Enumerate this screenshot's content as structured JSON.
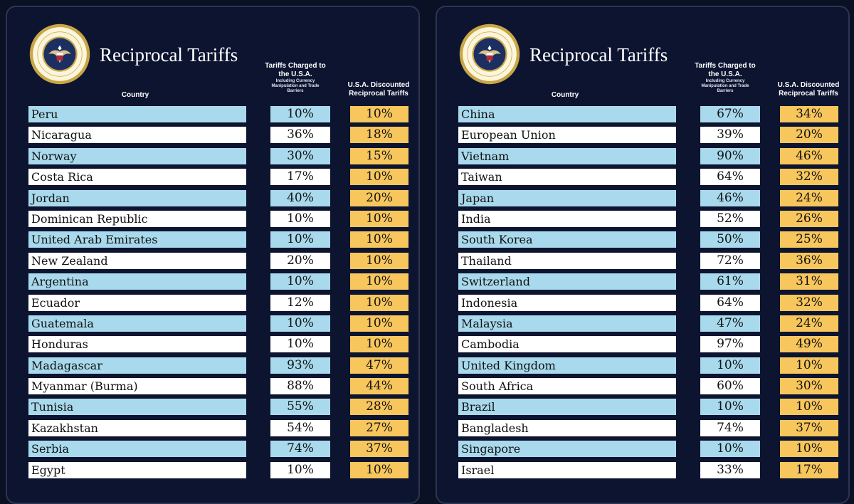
{
  "colors": {
    "background": "#0b1124",
    "panel": "#0c1430",
    "row_blue": "#a9d9ec",
    "row_white": "#ffffff",
    "discounted": "#f7c65c",
    "seal_gold": "#c9a646"
  },
  "panels": [
    {
      "title": "Reciprocal Tariffs",
      "seal_icon": "presidential-seal",
      "seal_text": "SEAL OF THE PRESIDENT OF THE UNITED STATES",
      "headers": {
        "country": "Country",
        "charged": "Tariffs Charged to the U.S.A.",
        "charged_sub": "Including Currency Manipulation and Trade Barriers",
        "discounted": "U.S.A. Discounted Reciprocal Tariffs"
      },
      "rows": [
        {
          "country": "Peru",
          "charged": "10%",
          "discounted": "10%"
        },
        {
          "country": "Nicaragua",
          "charged": "36%",
          "discounted": "18%"
        },
        {
          "country": "Norway",
          "charged": "30%",
          "discounted": "15%"
        },
        {
          "country": "Costa Rica",
          "charged": "17%",
          "discounted": "10%"
        },
        {
          "country": "Jordan",
          "charged": "40%",
          "discounted": "20%"
        },
        {
          "country": "Dominican Republic",
          "charged": "10%",
          "discounted": "10%"
        },
        {
          "country": "United Arab Emirates",
          "charged": "10%",
          "discounted": "10%"
        },
        {
          "country": "New Zealand",
          "charged": "20%",
          "discounted": "10%"
        },
        {
          "country": "Argentina",
          "charged": "10%",
          "discounted": "10%"
        },
        {
          "country": "Ecuador",
          "charged": "12%",
          "discounted": "10%"
        },
        {
          "country": "Guatemala",
          "charged": "10%",
          "discounted": "10%"
        },
        {
          "country": "Honduras",
          "charged": "10%",
          "discounted": "10%"
        },
        {
          "country": "Madagascar",
          "charged": "93%",
          "discounted": "47%"
        },
        {
          "country": "Myanmar (Burma)",
          "charged": "88%",
          "discounted": "44%"
        },
        {
          "country": "Tunisia",
          "charged": "55%",
          "discounted": "28%"
        },
        {
          "country": "Kazakhstan",
          "charged": "54%",
          "discounted": "27%"
        },
        {
          "country": "Serbia",
          "charged": "74%",
          "discounted": "37%"
        },
        {
          "country": "Egypt",
          "charged": "10%",
          "discounted": "10%"
        }
      ]
    },
    {
      "title": "Reciprocal Tariffs",
      "seal_icon": "presidential-seal",
      "seal_text": "SEAL OF THE PRESIDENT OF THE UNITED STATES",
      "headers": {
        "country": "Country",
        "charged": "Tariffs Charged to the U.S.A.",
        "charged_sub": "Including Currency Manipulation and Trade Barriers",
        "discounted": "U.S.A. Discounted Reciprocal Tariffs"
      },
      "rows": [
        {
          "country": "China",
          "charged": "67%",
          "discounted": "34%"
        },
        {
          "country": "European Union",
          "charged": "39%",
          "discounted": "20%"
        },
        {
          "country": "Vietnam",
          "charged": "90%",
          "discounted": "46%"
        },
        {
          "country": "Taiwan",
          "charged": "64%",
          "discounted": "32%"
        },
        {
          "country": "Japan",
          "charged": "46%",
          "discounted": "24%"
        },
        {
          "country": "India",
          "charged": "52%",
          "discounted": "26%"
        },
        {
          "country": "South Korea",
          "charged": "50%",
          "discounted": "25%"
        },
        {
          "country": "Thailand",
          "charged": "72%",
          "discounted": "36%"
        },
        {
          "country": "Switzerland",
          "charged": "61%",
          "discounted": "31%"
        },
        {
          "country": "Indonesia",
          "charged": "64%",
          "discounted": "32%"
        },
        {
          "country": "Malaysia",
          "charged": "47%",
          "discounted": "24%"
        },
        {
          "country": "Cambodia",
          "charged": "97%",
          "discounted": "49%"
        },
        {
          "country": "United Kingdom",
          "charged": "10%",
          "discounted": "10%"
        },
        {
          "country": "South Africa",
          "charged": "60%",
          "discounted": "30%"
        },
        {
          "country": "Brazil",
          "charged": "10%",
          "discounted": "10%"
        },
        {
          "country": "Bangladesh",
          "charged": "74%",
          "discounted": "37%"
        },
        {
          "country": "Singapore",
          "charged": "10%",
          "discounted": "10%"
        },
        {
          "country": "Israel",
          "charged": "33%",
          "discounted": "17%"
        }
      ]
    }
  ]
}
